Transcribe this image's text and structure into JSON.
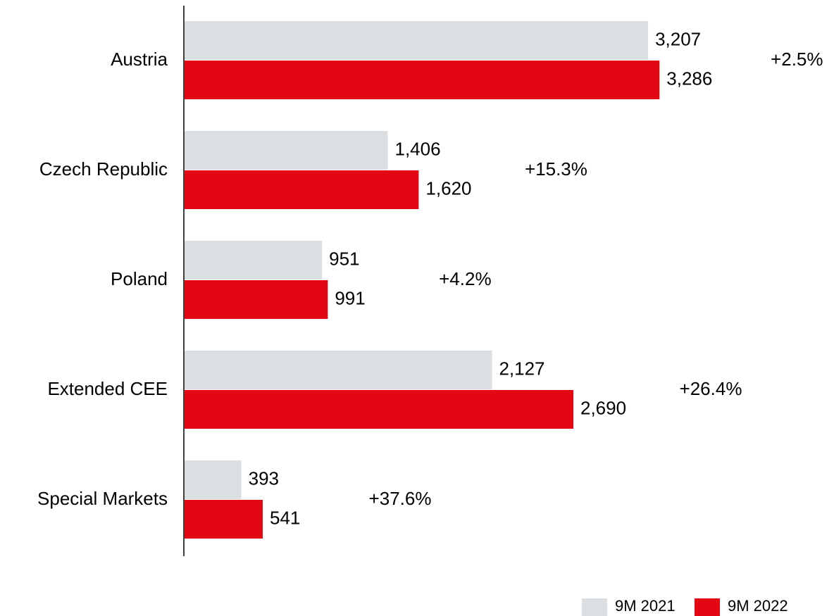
{
  "chart_data": {
    "type": "hbar",
    "categories": [
      "Austria",
      "Czech Republic",
      "Poland",
      "Extended CEE",
      "Special Markets"
    ],
    "series": [
      {
        "name": "9M 2021",
        "color": "#dcdfe2",
        "values": [
          3207,
          1406,
          951,
          2127,
          393
        ],
        "value_labels": [
          "3,207",
          "1,406",
          "951",
          "2,127",
          "393"
        ]
      },
      {
        "name": "9M 2022",
        "color": "#e30613",
        "values": [
          3286,
          1620,
          991,
          2690,
          541
        ],
        "value_labels": [
          "3,286",
          "1,620",
          "991",
          "2,690",
          "541"
        ]
      }
    ],
    "annotations": [
      "+2.5%",
      "+15.3%",
      "+4.2%",
      "+26.4%",
      "+37.6%"
    ],
    "legend": "bottom-right"
  }
}
